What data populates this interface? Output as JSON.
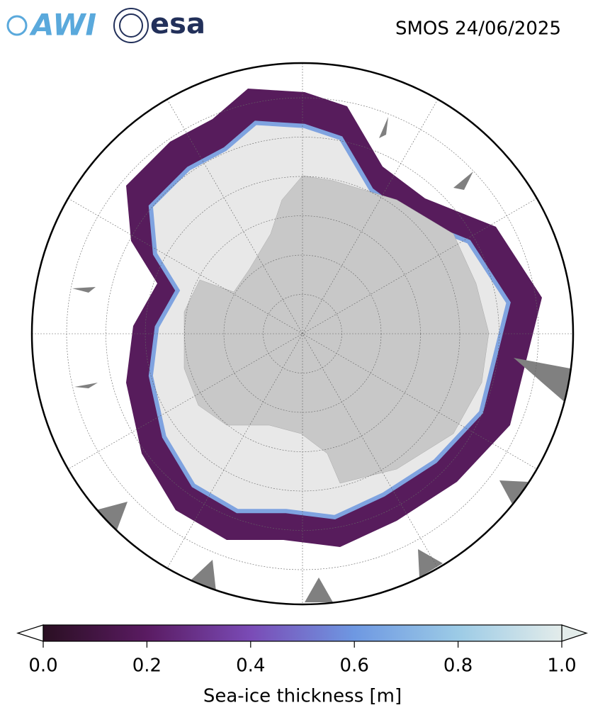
{
  "header": {
    "logos": [
      "AWI",
      "esa"
    ],
    "title": "SMOS 24/06/2025"
  },
  "colorbar": {
    "label": "Sea-ice thickness [m]",
    "lim": [
      0,
      1
    ],
    "ticks": [
      {
        "value": 0,
        "label": "0.0"
      },
      0.2,
      0.4,
      0.6,
      0.8,
      {
        "value": 1,
        "label": "1.0"
      }
    ]
  }
}
